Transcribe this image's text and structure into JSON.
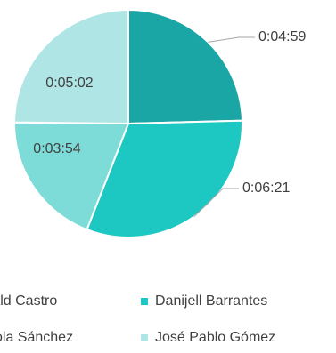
{
  "chart_data": {
    "type": "pie",
    "title": "",
    "unit": "time (h:mm:ss)",
    "slices": [
      {
        "label": "0:04:59",
        "seconds": 299,
        "color": "#1BA6A6"
      },
      {
        "label": "0:06:21",
        "seconds": 381,
        "color": "#1EC8C2"
      },
      {
        "label": "0:03:54",
        "seconds": 234,
        "color": "#7DDCD8"
      },
      {
        "label": "0:05:02",
        "seconds": 302,
        "color": "#B0E5E5"
      }
    ],
    "legend": [
      {
        "text": "rald Castro",
        "color": "#1BA6A6"
      },
      {
        "text": "Danijell Barrantes",
        "color": "#1EC8C2"
      },
      {
        "text": "ola Sánchez",
        "color": "#7DDCD8"
      },
      {
        "text": "José Pablo Gómez",
        "color": "#B0E5E5"
      }
    ],
    "legend_placement": "bottom"
  }
}
